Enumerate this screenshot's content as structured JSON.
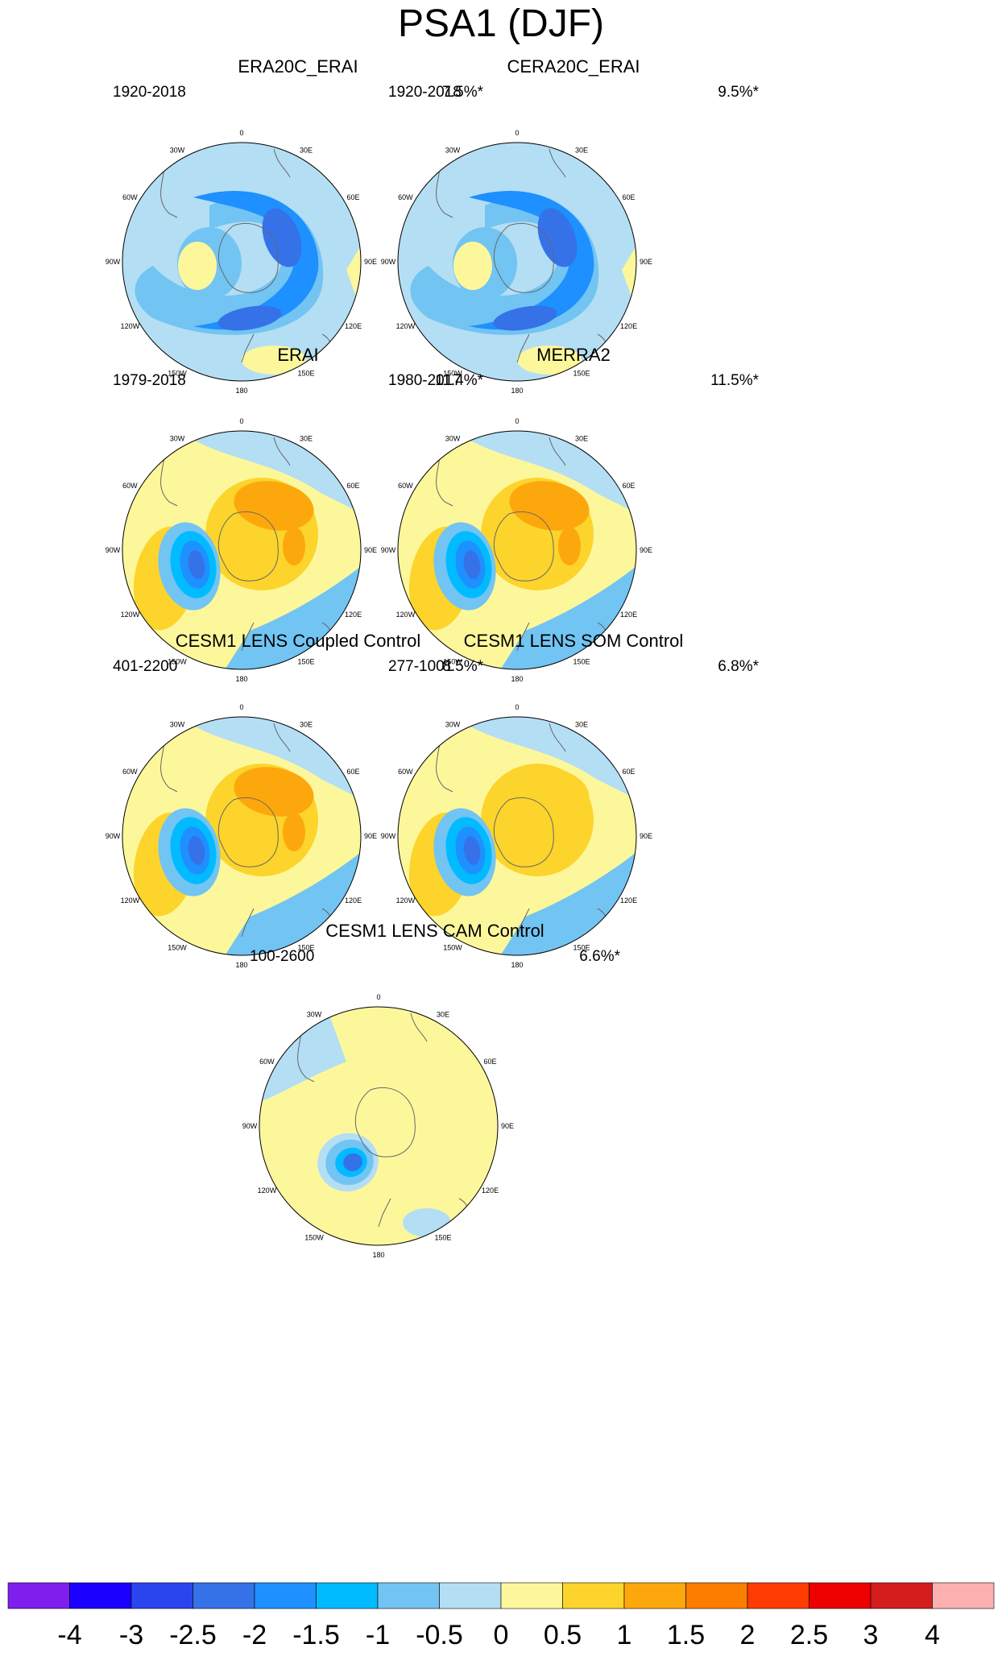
{
  "title": "PSA1 (DJF)",
  "lon_labels": [
    "0",
    "30E",
    "60E",
    "90E",
    "120E",
    "150E",
    "180",
    "150W",
    "120W",
    "90W",
    "60W",
    "30W"
  ],
  "panels": [
    {
      "title": "ERA20C_ERAI",
      "period": "1920-2018",
      "variance": "7.5%*",
      "pattern": "neg"
    },
    {
      "title": "CERA20C_ERAI",
      "period": "1920-2018",
      "variance": "9.5%*",
      "pattern": "neg"
    },
    {
      "title": "ERAI",
      "period": "1979-2018",
      "variance": "11.4%*",
      "pattern": "pos"
    },
    {
      "title": "MERRA2",
      "period": "1980-2017",
      "variance": "11.5%*",
      "pattern": "pos"
    },
    {
      "title": "CESM1 LENS Coupled Control",
      "period": "401-2200",
      "variance": "8.5%*",
      "pattern": "pos"
    },
    {
      "title": "CESM1 LENS SOM Control",
      "period": "277-1001",
      "variance": "6.8%*",
      "pattern": "posweak"
    },
    {
      "title": "CESM1 LENS CAM Control",
      "period": "100-2600",
      "variance": "6.6%*",
      "pattern": "cam"
    }
  ],
  "colorbar": {
    "labels": [
      "-4",
      "-3",
      "-2.5",
      "-2",
      "-1.5",
      "-1",
      "-0.5",
      "0",
      "0.5",
      "1",
      "1.5",
      "2",
      "2.5",
      "3",
      "4"
    ],
    "colors": [
      "#7f1fee",
      "#1a00ff",
      "#2b45ee",
      "#3572e8",
      "#1e90ff",
      "#00bbff",
      "#72c4f2",
      "#b4def4",
      "#fdf79c",
      "#fdd42b",
      "#fca80c",
      "#fc7d00",
      "#fe3b00",
      "#ec0000",
      "#d41e1e",
      "#fdb0b0"
    ]
  },
  "chart_data": {
    "type": "heatmap",
    "title": "PSA1 (DJF)",
    "projection": "south polar stereographic",
    "xlabel": "",
    "ylabel": "",
    "levels": [
      -4,
      -3,
      -2.5,
      -2,
      -1.5,
      -1,
      -0.5,
      0,
      0.5,
      1,
      1.5,
      2,
      2.5,
      3,
      4
    ],
    "series": [
      {
        "name": "ERA20C_ERAI",
        "period": "1920-2018",
        "variance_explained": "7.5%*"
      },
      {
        "name": "CERA20C_ERAI",
        "period": "1920-2018",
        "variance_explained": "9.5%*"
      },
      {
        "name": "ERAI",
        "period": "1979-2018",
        "variance_explained": "11.4%*"
      },
      {
        "name": "MERRA2",
        "period": "1980-2017",
        "variance_explained": "11.5%*"
      },
      {
        "name": "CESM1 LENS Coupled Control",
        "period": "401-2200",
        "variance_explained": "8.5%*"
      },
      {
        "name": "CESM1 LENS SOM Control",
        "period": "277-1001",
        "variance_explained": "6.8%*"
      },
      {
        "name": "CESM1 LENS CAM Control",
        "period": "100-2600",
        "variance_explained": "6.6%*"
      }
    ]
  }
}
